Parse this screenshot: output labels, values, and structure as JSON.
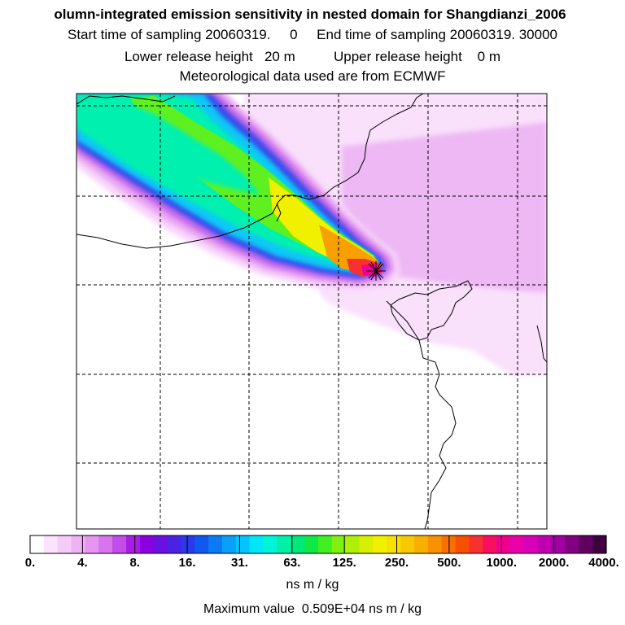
{
  "header": {
    "title": "olumn-integrated emission sensitivity in nested domain for Shangdianzi_2006",
    "line2": "Start time of sampling 20060319.     0     End time of sampling 20060319. 30000",
    "line3": "Lower release height   20 m          Upper release height    0 m",
    "line4": "Meteorological data used are from ECMWF"
  },
  "colorbar": {
    "tick_labels": [
      "0.",
      "4.",
      "8.",
      "16.",
      "31.",
      "63.",
      "125.",
      "250.",
      "500.",
      "1000.",
      "2000.",
      "4000."
    ],
    "colors": [
      "#ffffff",
      "#fbe3fb",
      "#f5ccf7",
      "#efb2f4",
      "#e695f0",
      "#d675ec",
      "#c24de9",
      "#a91ee7",
      "#8b00e0",
      "#6a10e0",
      "#4a22e4",
      "#2a3aea",
      "#1058f0",
      "#0a7af5",
      "#08a0f8",
      "#05c4fb",
      "#00e8f8",
      "#00f5d8",
      "#00f0a8",
      "#00e878",
      "#10e848",
      "#40f020",
      "#80f010",
      "#b0f008",
      "#d8f000",
      "#f0f000",
      "#f8e000",
      "#f8c800",
      "#f8b000",
      "#f89000",
      "#f87000",
      "#f85000",
      "#f83030",
      "#f81060",
      "#f00090",
      "#e800a8",
      "#d800b8",
      "#c000b0",
      "#a000a0",
      "#800080",
      "#600060",
      "#400040"
    ],
    "units": "ns m / kg"
  },
  "max_value_text": "Maximum value  0.509E+04 ns m / kg",
  "map": {
    "release_marker": "star-marker",
    "plume_colors": [
      "#f8d6fa",
      "#e9a8f2",
      "#c86cec",
      "#3a4aec",
      "#08c8f8",
      "#00f0b0",
      "#60f020",
      "#f0f000",
      "#f8a000",
      "#f83030",
      "#f00090"
    ]
  }
}
